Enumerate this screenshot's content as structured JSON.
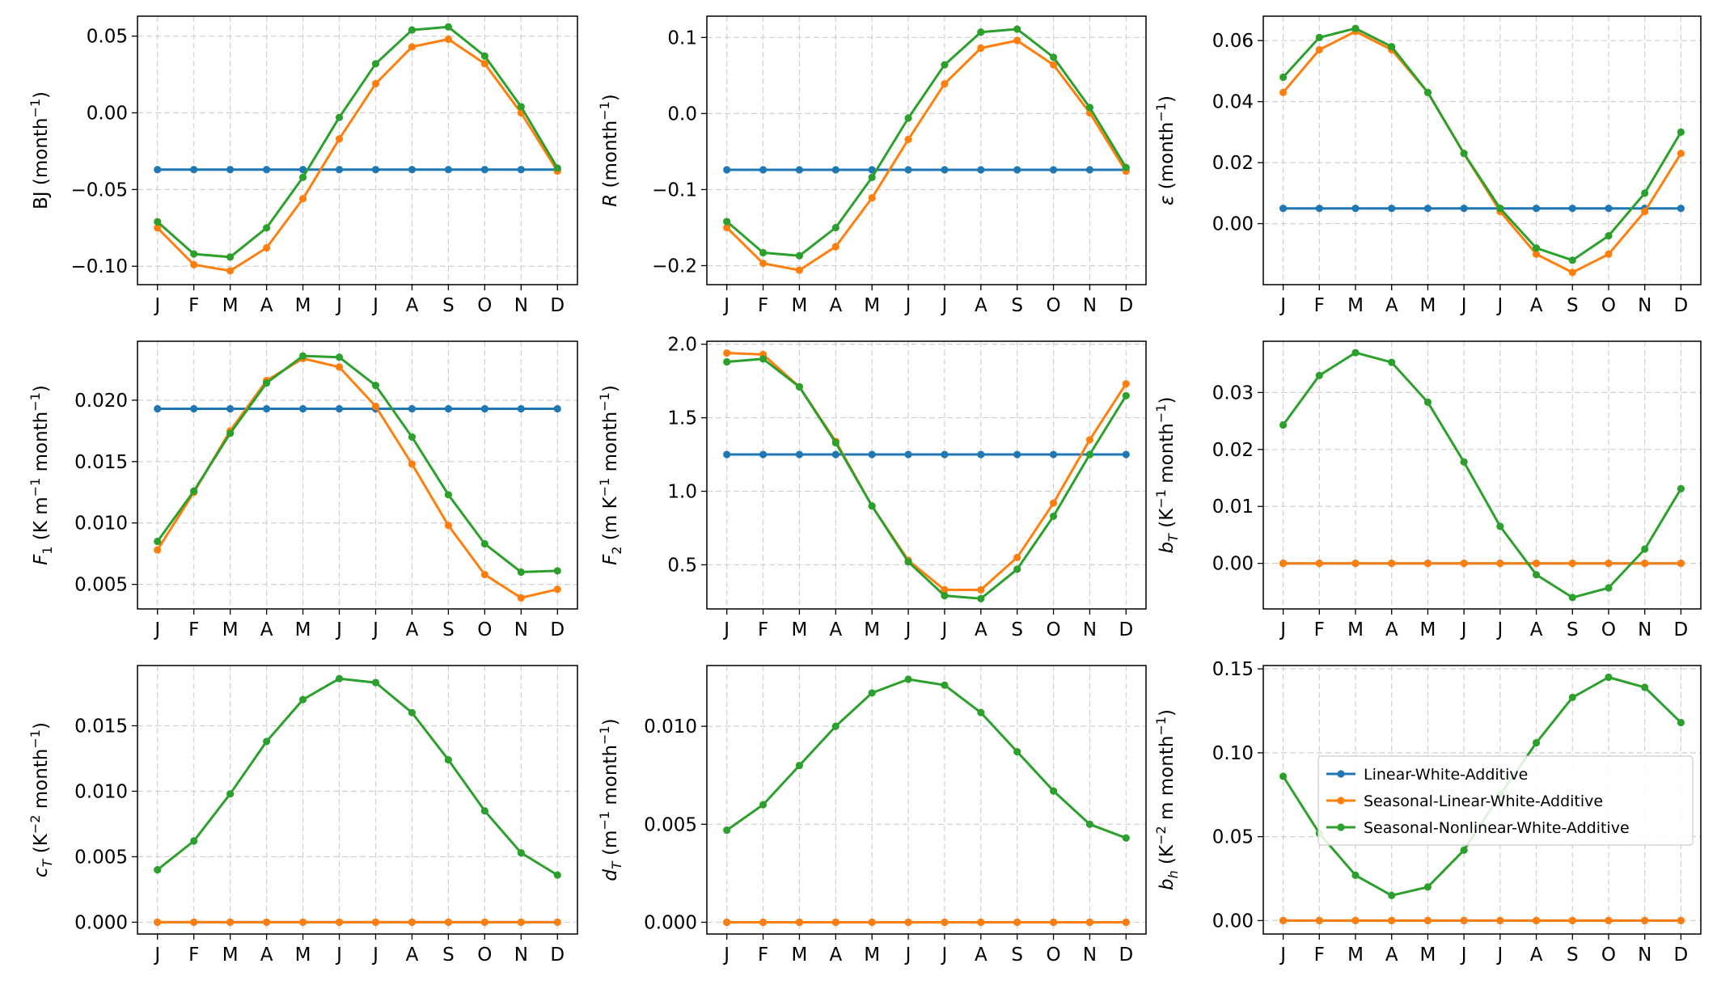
{
  "figure": {
    "months": [
      "J",
      "F",
      "M",
      "A",
      "M",
      "J",
      "J",
      "A",
      "S",
      "O",
      "N",
      "D"
    ]
  },
  "legend": {
    "entries": [
      {
        "label": "Linear-White-Additive",
        "color": "#1f77b4"
      },
      {
        "label": "Seasonal-Linear-White-Additive",
        "color": "#ff7f0e"
      },
      {
        "label": "Seasonal-Nonlinear-White-Additive",
        "color": "#2ca02c"
      }
    ]
  },
  "chart_data": [
    {
      "type": "line",
      "ylabel_parts": [
        {
          "t": "BJ (month"
        },
        {
          "t": "−1",
          "sup": true
        },
        {
          "t": ")"
        }
      ],
      "ylim": [
        -0.112,
        0.063
      ],
      "yticks": [
        -0.1,
        -0.05,
        0.0,
        0.05
      ],
      "ytick_labels": [
        "−0.10",
        "−0.05",
        "0.00",
        "0.05"
      ],
      "grid": true,
      "series": [
        {
          "name": "Linear-White-Additive",
          "color": "#1f77b4",
          "values": [
            -0.037,
            -0.037,
            -0.037,
            -0.037,
            -0.037,
            -0.037,
            -0.037,
            -0.037,
            -0.037,
            -0.037,
            -0.037,
            -0.037
          ]
        },
        {
          "name": "Seasonal-Linear-White-Additive",
          "color": "#ff7f0e",
          "values": [
            -0.075,
            -0.099,
            -0.103,
            -0.088,
            -0.056,
            -0.017,
            0.019,
            0.043,
            0.048,
            0.032,
            0.0,
            -0.038
          ]
        },
        {
          "name": "Seasonal-Nonlinear-White-Additive",
          "color": "#2ca02c",
          "values": [
            -0.071,
            -0.092,
            -0.094,
            -0.075,
            -0.042,
            -0.003,
            0.032,
            0.054,
            0.056,
            0.037,
            0.004,
            -0.036
          ]
        }
      ]
    },
    {
      "type": "line",
      "ylabel_parts": [
        {
          "t": "R",
          "i": true
        },
        {
          "t": " (month"
        },
        {
          "t": "−1",
          "sup": true
        },
        {
          "t": ")"
        }
      ],
      "ylim": [
        -0.225,
        0.128
      ],
      "yticks": [
        -0.2,
        -0.1,
        0.0,
        0.1
      ],
      "ytick_labels": [
        "−0.2",
        "−0.1",
        "0.0",
        "0.1"
      ],
      "grid": true,
      "series": [
        {
          "name": "Linear-White-Additive",
          "color": "#1f77b4",
          "values": [
            -0.074,
            -0.074,
            -0.074,
            -0.074,
            -0.074,
            -0.074,
            -0.074,
            -0.074,
            -0.074,
            -0.074,
            -0.074,
            -0.074
          ]
        },
        {
          "name": "Seasonal-Linear-White-Additive",
          "color": "#ff7f0e",
          "values": [
            -0.15,
            -0.197,
            -0.206,
            -0.175,
            -0.111,
            -0.034,
            0.039,
            0.086,
            0.096,
            0.064,
            0.001,
            -0.076
          ]
        },
        {
          "name": "Seasonal-Nonlinear-White-Additive",
          "color": "#2ca02c",
          "values": [
            -0.142,
            -0.183,
            -0.187,
            -0.15,
            -0.084,
            -0.006,
            0.064,
            0.107,
            0.111,
            0.074,
            0.008,
            -0.071
          ]
        }
      ]
    },
    {
      "type": "line",
      "ylabel_parts": [
        {
          "t": "ε",
          "i": true
        },
        {
          "t": " (month"
        },
        {
          "t": "−1",
          "sup": true
        },
        {
          "t": ")"
        }
      ],
      "ylim": [
        -0.02,
        0.068
      ],
      "yticks": [
        0.0,
        0.02,
        0.04,
        0.06
      ],
      "ytick_labels": [
        "0.00",
        "0.02",
        "0.04",
        "0.06"
      ],
      "grid": true,
      "series": [
        {
          "name": "Linear-White-Additive",
          "color": "#1f77b4",
          "values": [
            0.005,
            0.005,
            0.005,
            0.005,
            0.005,
            0.005,
            0.005,
            0.005,
            0.005,
            0.005,
            0.005,
            0.005
          ]
        },
        {
          "name": "Seasonal-Linear-White-Additive",
          "color": "#ff7f0e",
          "values": [
            0.043,
            0.057,
            0.063,
            0.057,
            0.043,
            0.023,
            0.004,
            -0.01,
            -0.016,
            -0.01,
            0.004,
            0.023
          ]
        },
        {
          "name": "Seasonal-Nonlinear-White-Additive",
          "color": "#2ca02c",
          "values": [
            0.048,
            0.061,
            0.064,
            0.058,
            0.043,
            0.023,
            0.005,
            -0.008,
            -0.012,
            -0.004,
            0.01,
            0.03
          ]
        }
      ]
    },
    {
      "type": "line",
      "ylabel_parts": [
        {
          "t": "F",
          "i": true
        },
        {
          "t": "1",
          "sub": true
        },
        {
          "t": " (K m"
        },
        {
          "t": "−1",
          "sup": true
        },
        {
          "t": " month"
        },
        {
          "t": "−1",
          "sup": true
        },
        {
          "t": ")"
        }
      ],
      "ylim": [
        0.003,
        0.0248
      ],
      "yticks": [
        0.005,
        0.01,
        0.015,
        0.02
      ],
      "ytick_labels": [
        "0.005",
        "0.010",
        "0.015",
        "0.020"
      ],
      "grid": true,
      "series": [
        {
          "name": "Linear-White-Additive",
          "color": "#1f77b4",
          "values": [
            0.0193,
            0.0193,
            0.0193,
            0.0193,
            0.0193,
            0.0193,
            0.0193,
            0.0193,
            0.0193,
            0.0193,
            0.0193,
            0.0193
          ]
        },
        {
          "name": "Seasonal-Linear-White-Additive",
          "color": "#ff7f0e",
          "values": [
            0.0078,
            0.0125,
            0.0175,
            0.0216,
            0.0234,
            0.0227,
            0.0195,
            0.0148,
            0.0098,
            0.0058,
            0.0039,
            0.0046
          ]
        },
        {
          "name": "Seasonal-Nonlinear-White-Additive",
          "color": "#2ca02c",
          "values": [
            0.0085,
            0.0126,
            0.0173,
            0.0214,
            0.0236,
            0.0235,
            0.0212,
            0.017,
            0.0123,
            0.0083,
            0.006,
            0.0061
          ]
        }
      ]
    },
    {
      "type": "line",
      "ylabel_parts": [
        {
          "t": "F",
          "i": true
        },
        {
          "t": "2",
          "sub": true
        },
        {
          "t": " (m K"
        },
        {
          "t": "−1",
          "sup": true
        },
        {
          "t": " month"
        },
        {
          "t": "−1",
          "sup": true
        },
        {
          "t": ")"
        }
      ],
      "ylim": [
        0.2,
        2.02
      ],
      "yticks": [
        0.5,
        1.0,
        1.5,
        2.0
      ],
      "ytick_labels": [
        "0.5",
        "1.0",
        "1.5",
        "2.0"
      ],
      "grid": true,
      "series": [
        {
          "name": "Linear-White-Additive",
          "color": "#1f77b4",
          "values": [
            1.25,
            1.25,
            1.25,
            1.25,
            1.25,
            1.25,
            1.25,
            1.25,
            1.25,
            1.25,
            1.25,
            1.25
          ]
        },
        {
          "name": "Seasonal-Linear-White-Additive",
          "color": "#ff7f0e",
          "values": [
            1.94,
            1.93,
            1.71,
            1.34,
            0.9,
            0.53,
            0.33,
            0.33,
            0.55,
            0.92,
            1.35,
            1.73
          ]
        },
        {
          "name": "Seasonal-Nonlinear-White-Additive",
          "color": "#2ca02c",
          "values": [
            1.88,
            1.9,
            1.71,
            1.33,
            0.9,
            0.52,
            0.29,
            0.27,
            0.47,
            0.83,
            1.25,
            1.65
          ]
        }
      ]
    },
    {
      "type": "line",
      "ylabel_parts": [
        {
          "t": "b",
          "i": true
        },
        {
          "t": "T",
          "sub": true,
          "i": true
        },
        {
          "t": " (K"
        },
        {
          "t": "−1",
          "sup": true
        },
        {
          "t": " month"
        },
        {
          "t": "−1",
          "sup": true
        },
        {
          "t": ")"
        }
      ],
      "ylim": [
        -0.008,
        0.039
      ],
      "yticks": [
        0.0,
        0.01,
        0.02,
        0.03
      ],
      "ytick_labels": [
        "0.00",
        "0.01",
        "0.02",
        "0.03"
      ],
      "grid": true,
      "series": [
        {
          "name": "Linear-White-Additive",
          "color": "#1f77b4",
          "values": [
            0,
            0,
            0,
            0,
            0,
            0,
            0,
            0,
            0,
            0,
            0,
            0
          ]
        },
        {
          "name": "Seasonal-Linear-White-Additive",
          "color": "#ff7f0e",
          "values": [
            0,
            0,
            0,
            0,
            0,
            0,
            0,
            0,
            0,
            0,
            0,
            0
          ]
        },
        {
          "name": "Seasonal-Nonlinear-White-Additive",
          "color": "#2ca02c",
          "values": [
            0.0243,
            0.033,
            0.037,
            0.0353,
            0.0283,
            0.0178,
            0.0065,
            -0.002,
            -0.006,
            -0.0043,
            0.0025,
            0.0131
          ]
        }
      ]
    },
    {
      "type": "line",
      "ylabel_parts": [
        {
          "t": "c",
          "i": true
        },
        {
          "t": "T",
          "sub": true,
          "i": true
        },
        {
          "t": " (K"
        },
        {
          "t": "−2",
          "sup": true
        },
        {
          "t": " month"
        },
        {
          "t": "−1",
          "sup": true
        },
        {
          "t": ")"
        }
      ],
      "ylim": [
        -0.0009,
        0.0196
      ],
      "yticks": [
        0.0,
        0.005,
        0.01,
        0.015
      ],
      "ytick_labels": [
        "0.000",
        "0.005",
        "0.010",
        "0.015"
      ],
      "grid": true,
      "series": [
        {
          "name": "Linear-White-Additive",
          "color": "#1f77b4",
          "values": [
            0,
            0,
            0,
            0,
            0,
            0,
            0,
            0,
            0,
            0,
            0,
            0
          ]
        },
        {
          "name": "Seasonal-Linear-White-Additive",
          "color": "#ff7f0e",
          "values": [
            0,
            0,
            0,
            0,
            0,
            0,
            0,
            0,
            0,
            0,
            0,
            0
          ]
        },
        {
          "name": "Seasonal-Nonlinear-White-Additive",
          "color": "#2ca02c",
          "values": [
            0.004,
            0.0062,
            0.0098,
            0.0138,
            0.017,
            0.0186,
            0.0183,
            0.016,
            0.0124,
            0.0085,
            0.0053,
            0.0036
          ]
        }
      ]
    },
    {
      "type": "line",
      "ylabel_parts": [
        {
          "t": "d",
          "i": true
        },
        {
          "t": "T",
          "sub": true,
          "i": true
        },
        {
          "t": " (m"
        },
        {
          "t": "−1",
          "sup": true
        },
        {
          "t": " month"
        },
        {
          "t": "−1",
          "sup": true
        },
        {
          "t": ")"
        }
      ],
      "ylim": [
        -0.0006,
        0.0131
      ],
      "yticks": [
        0.0,
        0.005,
        0.01
      ],
      "ytick_labels": [
        "0.000",
        "0.005",
        "0.010"
      ],
      "grid": true,
      "series": [
        {
          "name": "Linear-White-Additive",
          "color": "#1f77b4",
          "values": [
            0,
            0,
            0,
            0,
            0,
            0,
            0,
            0,
            0,
            0,
            0,
            0
          ]
        },
        {
          "name": "Seasonal-Linear-White-Additive",
          "color": "#ff7f0e",
          "values": [
            0,
            0,
            0,
            0,
            0,
            0,
            0,
            0,
            0,
            0,
            0,
            0
          ]
        },
        {
          "name": "Seasonal-Nonlinear-White-Additive",
          "color": "#2ca02c",
          "values": [
            0.0047,
            0.006,
            0.008,
            0.01,
            0.0117,
            0.0124,
            0.0121,
            0.0107,
            0.0087,
            0.0067,
            0.005,
            0.0043
          ]
        }
      ]
    },
    {
      "type": "line",
      "ylabel_parts": [
        {
          "t": "b",
          "i": true
        },
        {
          "t": "h",
          "sub": true,
          "i": true
        },
        {
          "t": " (K"
        },
        {
          "t": "−2",
          "sup": true
        },
        {
          "t": " m month"
        },
        {
          "t": "−1",
          "sup": true
        },
        {
          "t": ")"
        }
      ],
      "ylim": [
        -0.008,
        0.152
      ],
      "yticks": [
        0.0,
        0.05,
        0.1,
        0.15
      ],
      "ytick_labels": [
        "0.00",
        "0.05",
        "0.10",
        "0.15"
      ],
      "grid": true,
      "legend": "center-right",
      "series": [
        {
          "name": "Linear-White-Additive",
          "color": "#1f77b4",
          "values": [
            0,
            0,
            0,
            0,
            0,
            0,
            0,
            0,
            0,
            0,
            0,
            0
          ]
        },
        {
          "name": "Seasonal-Linear-White-Additive",
          "color": "#ff7f0e",
          "values": [
            0,
            0,
            0,
            0,
            0,
            0,
            0,
            0,
            0,
            0,
            0,
            0
          ]
        },
        {
          "name": "Seasonal-Nonlinear-White-Additive",
          "color": "#2ca02c",
          "values": [
            0.086,
            0.052,
            0.027,
            0.015,
            0.02,
            0.042,
            0.075,
            0.106,
            0.133,
            0.145,
            0.139,
            0.118
          ]
        }
      ]
    }
  ]
}
